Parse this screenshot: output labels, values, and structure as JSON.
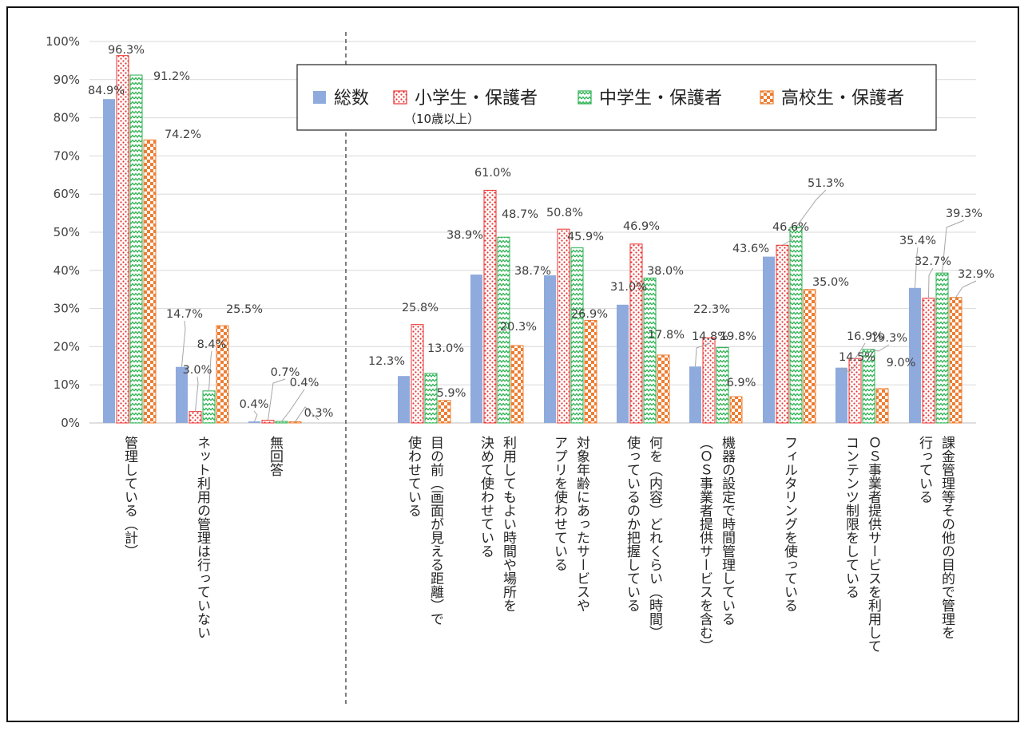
{
  "chart_data": {
    "type": "bar",
    "ylim": [
      0,
      100
    ],
    "y_ticks": [
      "0%",
      "10%",
      "20%",
      "30%",
      "40%",
      "50%",
      "60%",
      "70%",
      "80%",
      "90%",
      "100%"
    ],
    "grid": true,
    "legend_position": "top-right",
    "categories": [
      [
        "管理している（計）"
      ],
      [
        "ネット利用の管理は行っていない"
      ],
      [
        "無回答"
      ],
      [
        "目の前（画面が見える距離）で",
        "使わせている"
      ],
      [
        "利用してもよい時間や場所を",
        "決めて使わせている"
      ],
      [
        "対象年齢にあったサービスや",
        "アプリを使わせている"
      ],
      [
        "何を（内容）どれくらい（時間）",
        "使っているのか把握している"
      ],
      [
        "機器の設定で時間管理している",
        "（ＯＳ事業者提供サービスを含む）"
      ],
      [
        "フィルタリングを使っている"
      ],
      [
        "ＯＳ事業者提供サービスを利用して",
        "コンテンツ制限をしている"
      ],
      [
        "課金管理等その他の目的で管理を",
        "行っている"
      ]
    ],
    "series": [
      {
        "name": "総数",
        "color": "#8FAADC",
        "pattern": "solid",
        "values": [
          84.9,
          14.7,
          0.4,
          12.3,
          38.9,
          38.7,
          31.0,
          14.8,
          43.6,
          14.5,
          35.4
        ],
        "labels": [
          "84.9%",
          "14.7%",
          "0.4%",
          "12.3%",
          "38.9%",
          "38.7%",
          "31.0%",
          "14.8%",
          "43.6%",
          "14.5%",
          "35.4%"
        ]
      },
      {
        "name": "小学生・保護者",
        "name_sub": "（10歳以上）",
        "color": "#E8312F",
        "pattern": "dots",
        "values": [
          96.3,
          3.0,
          0.7,
          25.8,
          61.0,
          50.8,
          46.9,
          22.3,
          46.6,
          16.9,
          32.7
        ],
        "labels": [
          "96.3%",
          "3.0%",
          "0.7%",
          "25.8%",
          "61.0%",
          "50.8%",
          "46.9%",
          "22.3%",
          "46.6%",
          "16.9%",
          "32.7%"
        ]
      },
      {
        "name": "中学生・保護者",
        "color": "#27B04E",
        "pattern": "zigzag",
        "values": [
          91.2,
          8.4,
          0.4,
          13.0,
          48.7,
          45.9,
          38.0,
          19.8,
          51.3,
          19.3,
          39.3
        ],
        "labels": [
          "91.2%",
          "8.4%",
          "0.4%",
          "13.0%",
          "48.7%",
          "45.9%",
          "38.0%",
          "19.8%",
          "51.3%",
          "19.3%",
          "39.3%"
        ]
      },
      {
        "name": "高校生・保護者",
        "color": "#ED7D31",
        "pattern": "checker",
        "values": [
          74.2,
          25.5,
          0.3,
          5.9,
          20.3,
          26.9,
          17.8,
          6.9,
          35.0,
          9.0,
          32.9
        ],
        "labels": [
          "74.2%",
          "25.5%",
          "0.3%",
          "5.9%",
          "20.3%",
          "26.9%",
          "17.8%",
          "6.9%",
          "35.0%",
          "9.0%",
          "32.9%"
        ]
      }
    ]
  }
}
